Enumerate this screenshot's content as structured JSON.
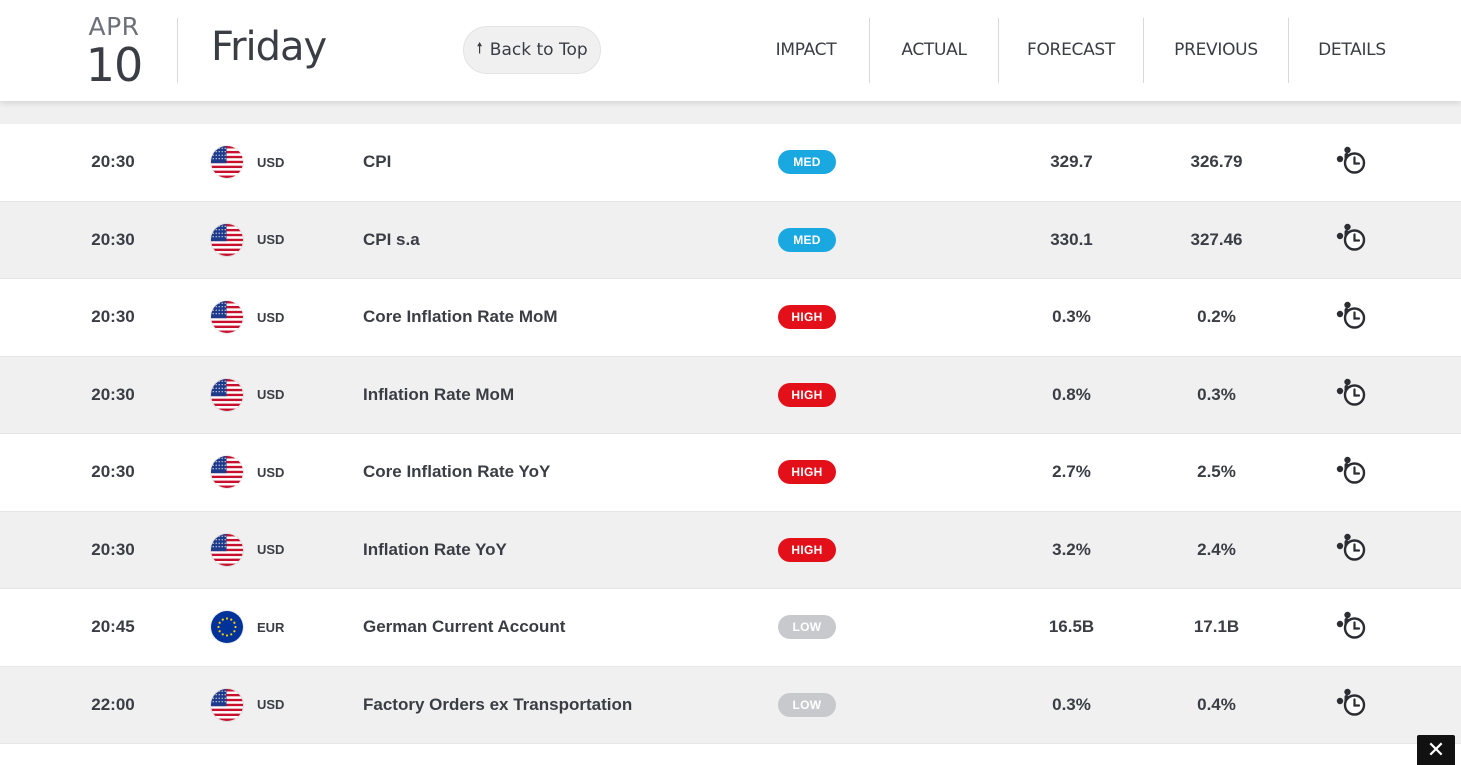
{
  "header": {
    "month": "APR",
    "day": "10",
    "weekday": "Friday",
    "back_to_top": "Back to Top",
    "columns": {
      "impact": "IMPACT",
      "actual": "ACTUAL",
      "forecast": "FORECAST",
      "previous": "PREVIOUS",
      "details": "DETAILS"
    }
  },
  "impact_colors": {
    "MED": "#1aa8e0",
    "HIGH": "#e3101a",
    "LOW": "#c8c9cc"
  },
  "rows": [
    {
      "time": "20:30",
      "flag": "us-flag-icon",
      "currency": "USD",
      "event": "CPI",
      "impact": "MED",
      "actual": "",
      "forecast": "329.7",
      "previous": "326.79",
      "details_icon": "details-clock-icon"
    },
    {
      "time": "20:30",
      "flag": "us-flag-icon",
      "currency": "USD",
      "event": "CPI s.a",
      "impact": "MED",
      "actual": "",
      "forecast": "330.1",
      "previous": "327.46",
      "details_icon": "details-clock-icon"
    },
    {
      "time": "20:30",
      "flag": "us-flag-icon",
      "currency": "USD",
      "event": "Core Inflation Rate MoM",
      "impact": "HIGH",
      "actual": "",
      "forecast": "0.3%",
      "previous": "0.2%",
      "details_icon": "details-clock-icon"
    },
    {
      "time": "20:30",
      "flag": "us-flag-icon",
      "currency": "USD",
      "event": "Inflation Rate MoM",
      "impact": "HIGH",
      "actual": "",
      "forecast": "0.8%",
      "previous": "0.3%",
      "details_icon": "details-clock-icon"
    },
    {
      "time": "20:30",
      "flag": "us-flag-icon",
      "currency": "USD",
      "event": "Core Inflation Rate YoY",
      "impact": "HIGH",
      "actual": "",
      "forecast": "2.7%",
      "previous": "2.5%",
      "details_icon": "details-clock-icon"
    },
    {
      "time": "20:30",
      "flag": "us-flag-icon",
      "currency": "USD",
      "event": "Inflation Rate YoY",
      "impact": "HIGH",
      "actual": "",
      "forecast": "3.2%",
      "previous": "2.4%",
      "details_icon": "details-clock-icon"
    },
    {
      "time": "20:45",
      "flag": "eu-flag-icon",
      "currency": "EUR",
      "event": "German Current Account",
      "impact": "LOW",
      "actual": "",
      "forecast": "16.5B",
      "previous": "17.1B",
      "details_icon": "details-clock-icon"
    },
    {
      "time": "22:00",
      "flag": "us-flag-icon",
      "currency": "USD",
      "event": "Factory Orders ex Transportation",
      "impact": "LOW",
      "actual": "",
      "forecast": "0.3%",
      "previous": "0.4%",
      "details_icon": "details-clock-icon"
    }
  ],
  "close_button": "✕"
}
